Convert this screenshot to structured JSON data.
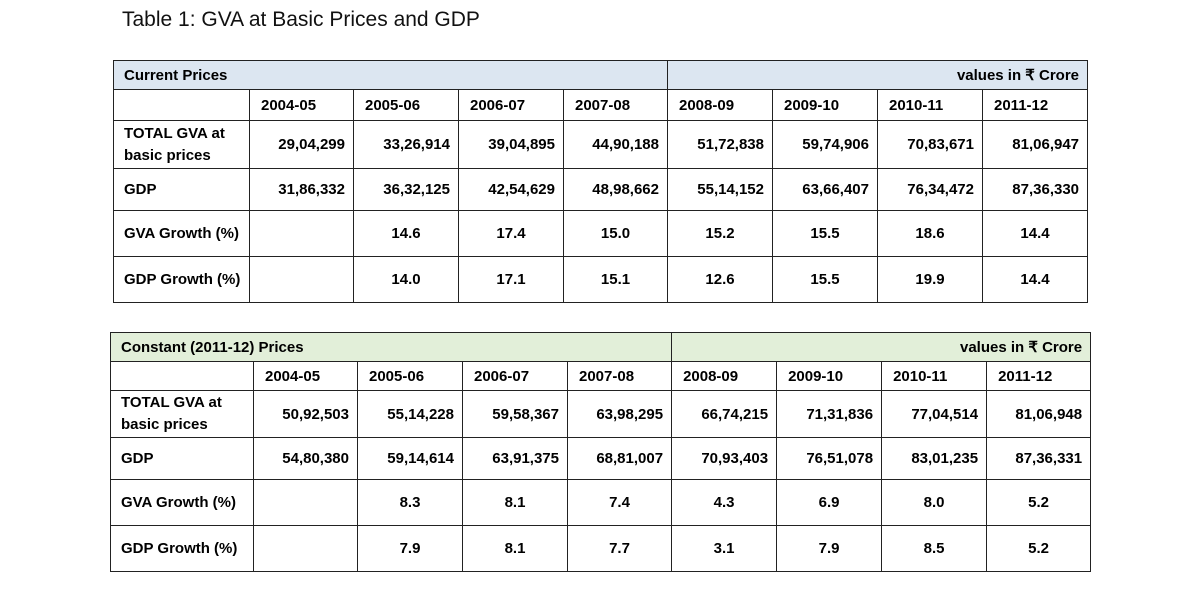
{
  "title": "Table 1: GVA at Basic Prices and GDP",
  "tables": [
    {
      "header_left": "Current Prices",
      "header_right": "values in ₹ Crore",
      "years": [
        "2004-05",
        "2005-06",
        "2006-07",
        "2007-08",
        "2008-09",
        "2009-10",
        "2010-11",
        "2011-12"
      ],
      "rows": [
        {
          "label": "TOTAL GVA at basic prices",
          "values": [
            "29,04,299",
            "33,26,914",
            "39,04,895",
            "44,90,188",
            "51,72,838",
            "59,74,906",
            "70,83,671",
            "81,06,947"
          ]
        },
        {
          "label": "GDP",
          "values": [
            "31,86,332",
            "36,32,125",
            "42,54,629",
            "48,98,662",
            "55,14,152",
            "63,66,407",
            "76,34,472",
            "87,36,330"
          ]
        },
        {
          "label": "GVA Growth (%)",
          "values": [
            "",
            "14.6",
            "17.4",
            "15.0",
            "15.2",
            "15.5",
            "18.6",
            "14.4"
          ]
        },
        {
          "label": "GDP Growth (%)",
          "values": [
            "",
            "14.0",
            "17.1",
            "15.1",
            "12.6",
            "15.5",
            "19.9",
            "14.4"
          ]
        }
      ]
    },
    {
      "header_left": "Constant  (2011-12)  Prices",
      "header_right": "values in ₹ Crore",
      "years": [
        "2004-05",
        "2005-06",
        "2006-07",
        "2007-08",
        "2008-09",
        "2009-10",
        "2010-11",
        "2011-12"
      ],
      "rows": [
        {
          "label": "TOTAL GVA at basic prices",
          "values": [
            "50,92,503",
            "55,14,228",
            "59,58,367",
            "63,98,295",
            "66,74,215",
            "71,31,836",
            "77,04,514",
            "81,06,948"
          ]
        },
        {
          "label": "GDP",
          "values": [
            "54,80,380",
            "59,14,614",
            "63,91,375",
            "68,81,007",
            "70,93,403",
            "76,51,078",
            "83,01,235",
            "87,36,331"
          ]
        },
        {
          "label": "GVA Growth (%)",
          "values": [
            "",
            "8.3",
            "8.1",
            "7.4",
            "4.3",
            "6.9",
            "8.0",
            "5.2"
          ]
        },
        {
          "label": "GDP Growth (%)",
          "values": [
            "",
            "7.9",
            "8.1",
            "7.7",
            "3.1",
            "7.9",
            "8.5",
            "5.2"
          ]
        }
      ]
    }
  ]
}
